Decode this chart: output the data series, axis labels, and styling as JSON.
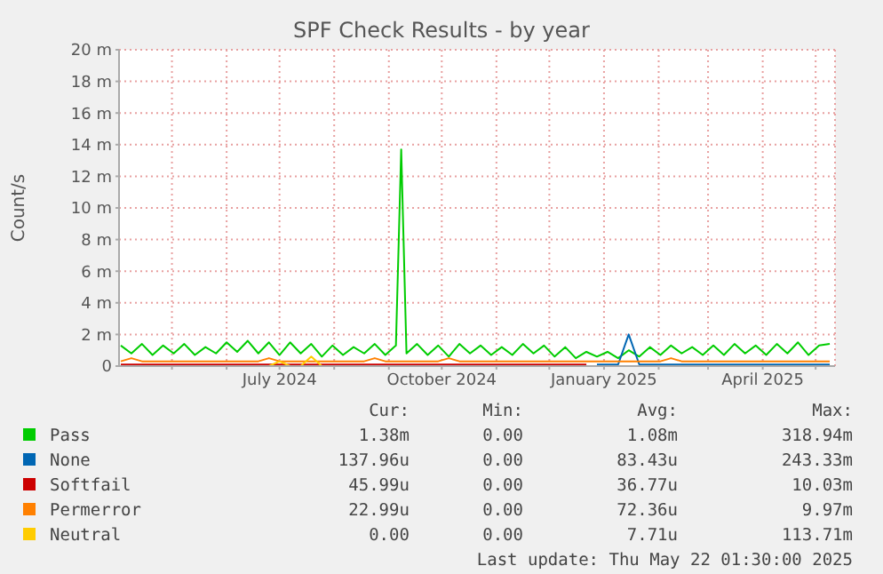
{
  "chart_data": {
    "type": "line",
    "title": "SPF Check Results - by year",
    "ylabel": "Count/s",
    "x": [
      "2024-04-02",
      "2024-04-08",
      "2024-04-14",
      "2024-04-20",
      "2024-04-26",
      "2024-05-02",
      "2024-05-08",
      "2024-05-14",
      "2024-05-20",
      "2024-05-26",
      "2024-06-01",
      "2024-06-07",
      "2024-06-13",
      "2024-06-19",
      "2024-06-25",
      "2024-07-01",
      "2024-07-07",
      "2024-07-13",
      "2024-07-19",
      "2024-07-25",
      "2024-07-31",
      "2024-08-06",
      "2024-08-12",
      "2024-08-18",
      "2024-08-24",
      "2024-08-30",
      "2024-09-05",
      "2024-09-11",
      "2024-09-17",
      "2024-09-23",
      "2024-09-29",
      "2024-10-05",
      "2024-10-11",
      "2024-10-17",
      "2024-10-23",
      "2024-10-29",
      "2024-11-04",
      "2024-11-10",
      "2024-11-16",
      "2024-11-22",
      "2024-11-28",
      "2024-12-04",
      "2024-12-10",
      "2024-12-16",
      "2024-12-22",
      "2024-12-28",
      "2025-01-03",
      "2025-01-09",
      "2025-01-15",
      "2025-01-21",
      "2025-01-27",
      "2025-02-02",
      "2025-02-08",
      "2025-02-14",
      "2025-02-20",
      "2025-02-26",
      "2025-03-04",
      "2025-03-10",
      "2025-03-16",
      "2025-03-22",
      "2025-03-28",
      "2025-04-03",
      "2025-04-09",
      "2025-04-15",
      "2025-04-21",
      "2025-04-27",
      "2025-05-03",
      "2025-05-09"
    ],
    "series": [
      {
        "name": "Pass",
        "color": "#00cc00",
        "x": [
          "2024-04-02",
          "2024-04-08",
          "2024-04-14",
          "2024-04-20",
          "2024-04-26",
          "2024-05-02",
          "2024-05-08",
          "2024-05-14",
          "2024-05-20",
          "2024-05-26",
          "2024-06-01",
          "2024-06-07",
          "2024-06-13",
          "2024-06-19",
          "2024-06-25",
          "2024-07-01",
          "2024-07-07",
          "2024-07-13",
          "2024-07-19",
          "2024-07-25",
          "2024-07-31",
          "2024-08-06",
          "2024-08-12",
          "2024-08-18",
          "2024-08-24",
          "2024-08-30",
          "2024-09-05",
          "2024-09-08",
          "2024-09-11",
          "2024-09-17",
          "2024-09-23",
          "2024-09-29",
          "2024-10-05",
          "2024-10-11",
          "2024-10-17",
          "2024-10-23",
          "2024-10-29",
          "2024-11-04",
          "2024-11-10",
          "2024-11-16",
          "2024-11-22",
          "2024-11-28",
          "2024-12-04",
          "2024-12-10",
          "2024-12-16",
          "2024-12-22",
          "2024-12-28",
          "2025-01-03",
          "2025-01-09",
          "2025-01-15",
          "2025-01-21",
          "2025-01-27",
          "2025-02-02",
          "2025-02-08",
          "2025-02-14",
          "2025-02-20",
          "2025-02-26",
          "2025-03-04",
          "2025-03-10",
          "2025-03-16",
          "2025-03-22",
          "2025-03-28",
          "2025-04-03",
          "2025-04-09",
          "2025-04-15",
          "2025-04-21",
          "2025-04-27",
          "2025-05-03",
          "2025-05-09"
        ],
        "values": [
          1.3,
          0.8,
          1.4,
          0.7,
          1.3,
          0.8,
          1.4,
          0.7,
          1.2,
          0.8,
          1.5,
          0.9,
          1.6,
          0.8,
          1.5,
          0.7,
          1.5,
          0.8,
          1.4,
          0.6,
          1.3,
          0.7,
          1.2,
          0.8,
          1.4,
          0.7,
          1.3,
          13.7,
          0.8,
          1.4,
          0.7,
          1.3,
          0.6,
          1.4,
          0.8,
          1.3,
          0.7,
          1.2,
          0.7,
          1.4,
          0.8,
          1.3,
          0.6,
          1.2,
          0.5,
          0.9,
          0.6,
          0.9,
          0.5,
          1.0,
          0.6,
          1.2,
          0.7,
          1.3,
          0.8,
          1.2,
          0.7,
          1.3,
          0.7,
          1.4,
          0.8,
          1.3,
          0.7,
          1.4,
          0.8,
          1.5,
          0.7,
          1.3,
          1.4
        ]
      },
      {
        "name": "None",
        "color": "#0066b3",
        "values": [
          null,
          null,
          null,
          null,
          null,
          null,
          null,
          null,
          null,
          null,
          null,
          null,
          null,
          null,
          null,
          null,
          null,
          null,
          null,
          null,
          null,
          null,
          null,
          null,
          null,
          null,
          null,
          null,
          null,
          null,
          null,
          null,
          null,
          null,
          null,
          null,
          null,
          null,
          null,
          null,
          null,
          null,
          null,
          null,
          null,
          0.1,
          0.1,
          0.1,
          2,
          0.1,
          0.1,
          0.1,
          0.1,
          0.1,
          0.1,
          0.1,
          0.1,
          0.1,
          0.1,
          0.1,
          0.1,
          0.1,
          0.1,
          0.1,
          0.1,
          0.1,
          0.1,
          0.1
        ]
      },
      {
        "name": "Softfail",
        "color": "#cc0000",
        "values": [
          0.1,
          0.1,
          0.1,
          0.1,
          0.1,
          0.1,
          0.1,
          0.1,
          0.1,
          0.1,
          0.1,
          0.1,
          0.1,
          0.1,
          0.1,
          0.1,
          0.1,
          0.1,
          0.1,
          0.1,
          0.1,
          0.1,
          0.1,
          0.1,
          0.1,
          0.1,
          0.1,
          0.1,
          0.1,
          0.1,
          0.1,
          0.1,
          0.1,
          0.1,
          0.1,
          0.1,
          0.1,
          0.1,
          0.1,
          0.1,
          0.1,
          0.1,
          0.1,
          0.1,
          0.1,
          null,
          null,
          null,
          null,
          null,
          null,
          null,
          null,
          null,
          null,
          null,
          null,
          null,
          null,
          null,
          null,
          null,
          null,
          null,
          null,
          null,
          null,
          null
        ]
      },
      {
        "name": "Permerror",
        "color": "#ff8000",
        "values": [
          0.3,
          0.5,
          0.3,
          0.3,
          0.3,
          0.3,
          0.3,
          0.3,
          0.3,
          0.3,
          0.3,
          0.3,
          0.3,
          0.3,
          0.5,
          0.3,
          0.3,
          0.3,
          0.3,
          0.3,
          0.3,
          0.3,
          0.3,
          0.3,
          0.5,
          0.3,
          0.3,
          0.3,
          0.3,
          0.3,
          0.3,
          0.5,
          0.3,
          0.3,
          0.3,
          0.3,
          0.3,
          0.3,
          0.3,
          0.3,
          0.3,
          0.3,
          0.3,
          0.3,
          0.3,
          0.3,
          0.3,
          0.3,
          0.3,
          0.3,
          0.3,
          0.3,
          0.5,
          0.3,
          0.3,
          0.3,
          0.3,
          0.3,
          0.3,
          0.3,
          0.3,
          0.3,
          0.3,
          0.3,
          0.3,
          0.3,
          0.3,
          0.3
        ]
      },
      {
        "name": "Neutral",
        "color": "#ffcc00",
        "values": [
          null,
          null,
          null,
          null,
          null,
          null,
          null,
          null,
          null,
          null,
          null,
          null,
          null,
          null,
          0,
          0.3,
          0,
          0,
          0.6,
          0,
          null,
          null,
          null,
          null,
          null,
          null,
          null,
          null,
          null,
          null,
          null,
          null,
          null,
          null,
          null,
          null,
          null,
          null,
          null,
          null,
          null,
          null,
          null,
          null,
          null,
          null,
          null,
          null,
          null,
          null,
          null,
          null,
          null,
          null,
          null,
          null,
          null,
          null,
          null,
          null,
          null,
          null,
          null,
          null,
          null,
          null,
          null,
          null
        ]
      }
    ],
    "xlim": [
      "2024-04-01",
      "2025-05-12"
    ],
    "xticks": [
      {
        "value": "2024-05-01",
        "label": null
      },
      {
        "value": "2024-06-01",
        "label": null
      },
      {
        "value": "2024-07-01",
        "label": "July 2024"
      },
      {
        "value": "2024-08-01",
        "label": null
      },
      {
        "value": "2024-09-01",
        "label": null
      },
      {
        "value": "2024-10-01",
        "label": "October 2024"
      },
      {
        "value": "2024-11-01",
        "label": null
      },
      {
        "value": "2024-12-01",
        "label": null
      },
      {
        "value": "2025-01-01",
        "label": "January 2025"
      },
      {
        "value": "2025-02-01",
        "label": null
      },
      {
        "value": "2025-03-01",
        "label": null
      },
      {
        "value": "2025-04-01",
        "label": "April 2025"
      },
      {
        "value": "2025-05-01",
        "label": null
      }
    ],
    "ylim": [
      0,
      20
    ],
    "yticks": [
      0,
      {
        "value": 2,
        "label": "2 m"
      },
      {
        "value": 4,
        "label": "4 m"
      },
      {
        "value": 6,
        "label": "6 m"
      },
      {
        "value": 8,
        "label": "8 m"
      },
      {
        "value": 10,
        "label": "10 m"
      },
      {
        "value": 12,
        "label": "12 m"
      },
      {
        "value": 14,
        "label": "14 m"
      },
      {
        "value": 16,
        "label": "16 m"
      },
      {
        "value": 18,
        "label": "18 m"
      },
      {
        "value": 20,
        "label": "20 m"
      }
    ],
    "grid": true,
    "legend": "bottom",
    "marker": "none",
    "line_style": "solid",
    "annotations": [
      "Cur:",
      "Min:",
      "Avg:",
      "Max:",
      "1.38m",
      "0.00",
      "1.08m",
      "318.94m",
      "137.96u",
      "0.00",
      "83.43u",
      "243.33m",
      "45.99u",
      "0.00",
      "36.77u",
      "10.03m",
      "22.99u",
      "0.00",
      "72.36u",
      "9.97m",
      "0.00",
      "0.00",
      "7.71u",
      "113.71m",
      "Last update: Thu May 22 01:30:00 2025"
    ]
  }
}
